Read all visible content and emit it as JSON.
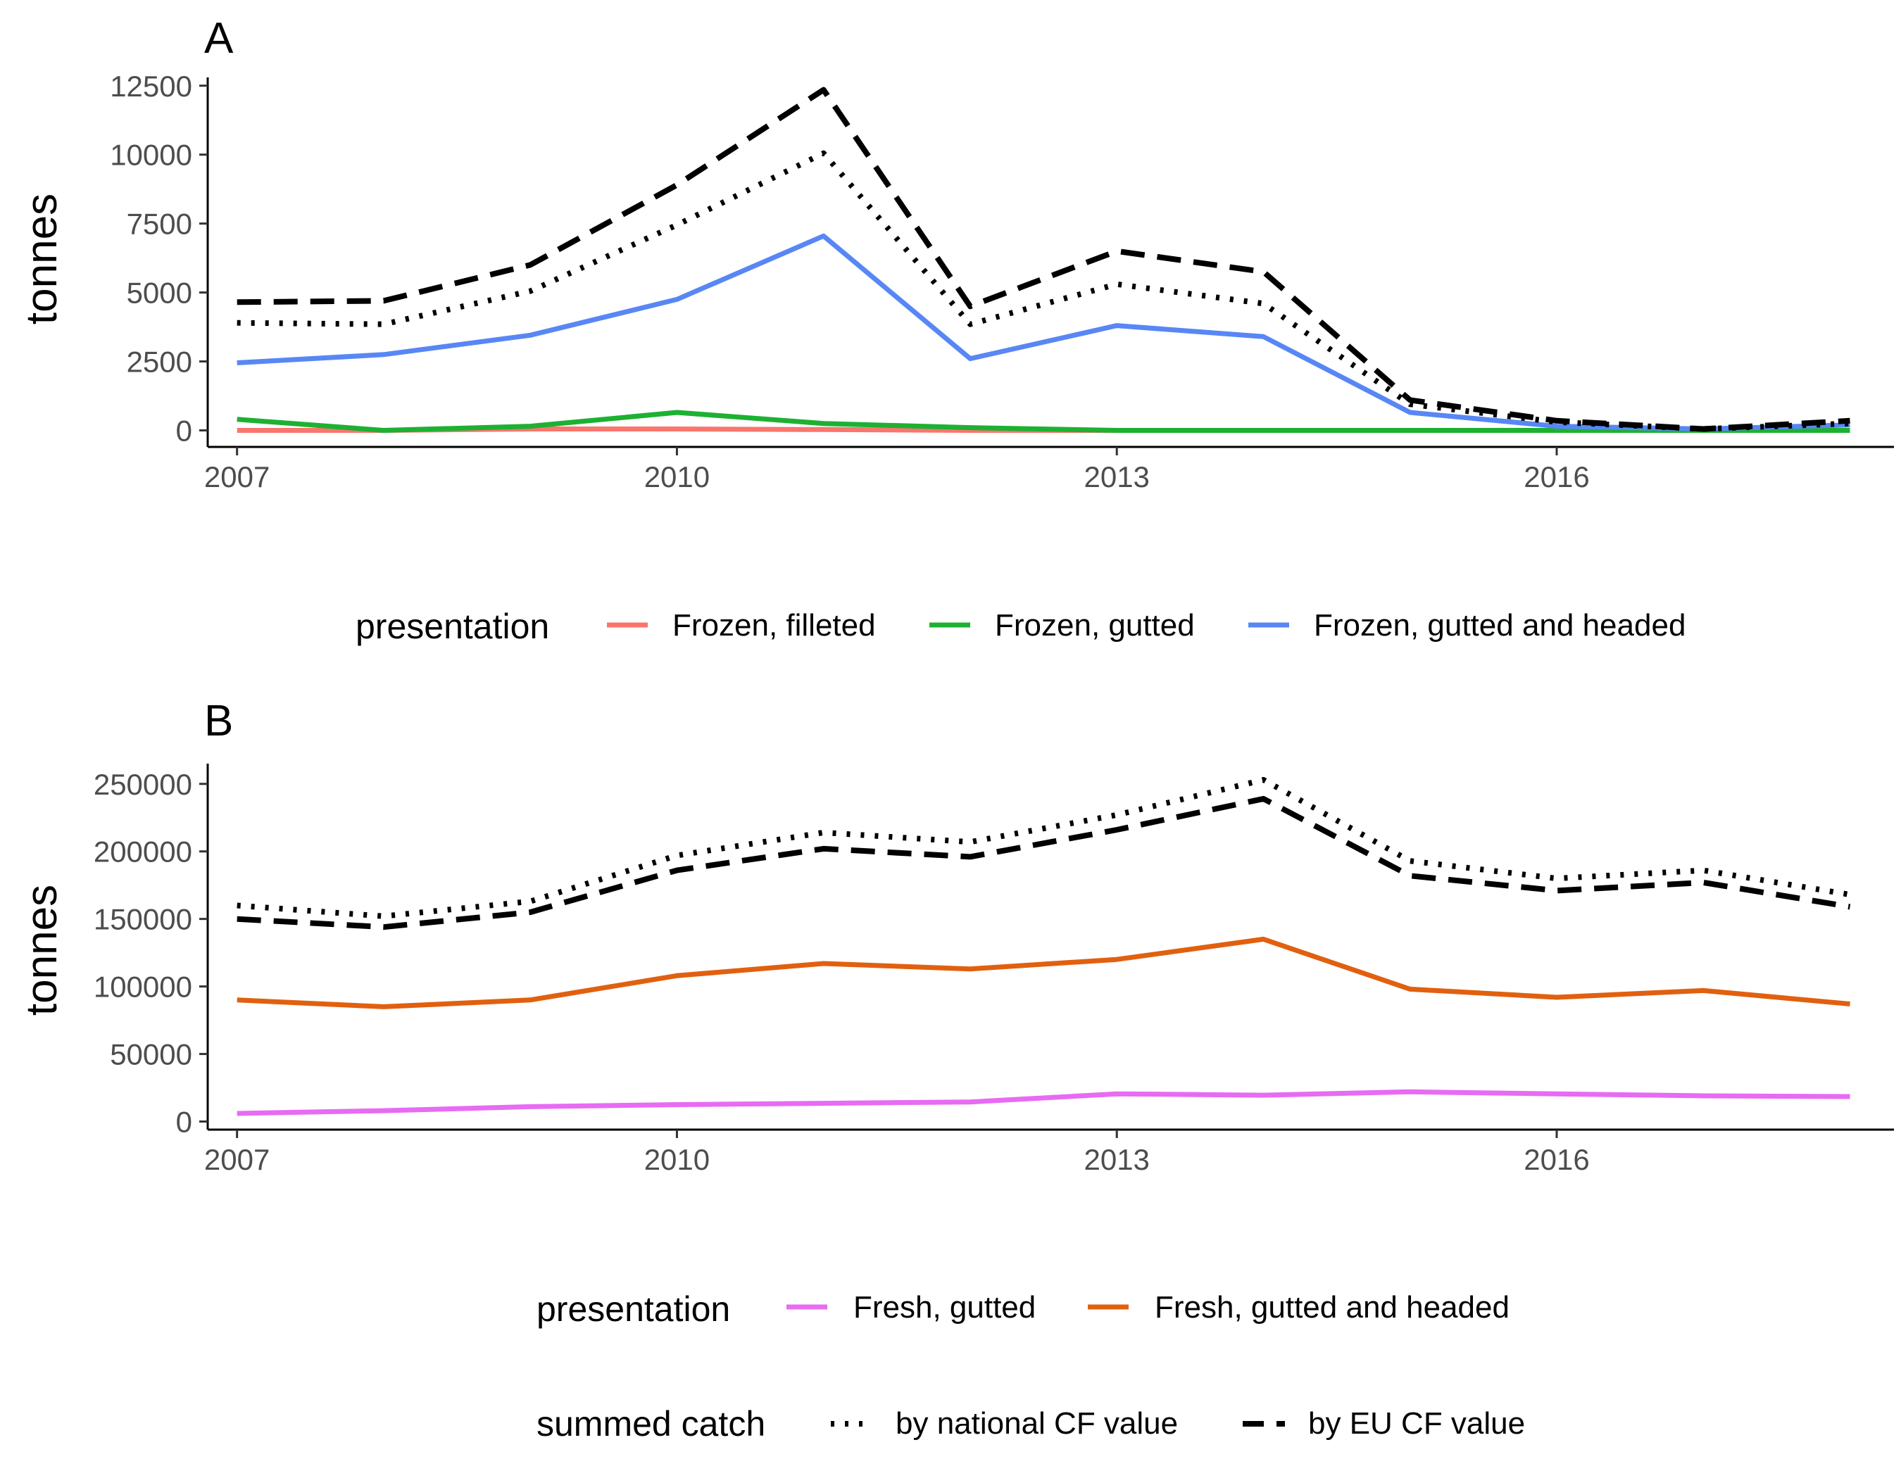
{
  "chart_data": [
    {
      "type": "line",
      "panel_label": "A",
      "ylabel": "tonnes",
      "xlabel": "",
      "xlim": [
        2006.8,
        2018.3
      ],
      "ylim": [
        -600,
        12800
      ],
      "x_ticks": [
        2007,
        2010,
        2013,
        2016
      ],
      "y_ticks": [
        0,
        2500,
        5000,
        7500,
        10000,
        12500
      ],
      "x": [
        2007,
        2008,
        2009,
        2010,
        2011,
        2012,
        2013,
        2014,
        2015,
        2016,
        2017,
        2018
      ],
      "series": [
        {
          "name": "Frozen, filleted",
          "color": "#F8766D",
          "dash": "solid",
          "values": [
            0,
            0,
            50,
            50,
            30,
            0,
            0,
            0,
            0,
            0,
            0,
            0
          ]
        },
        {
          "name": "Frozen, gutted",
          "color": "#1DB132",
          "dash": "solid",
          "values": [
            400,
            0,
            150,
            650,
            250,
            100,
            0,
            0,
            0,
            0,
            0,
            0
          ]
        },
        {
          "name": "Frozen, gutted and headed",
          "color": "#5887F5",
          "dash": "solid",
          "values": [
            2450,
            2750,
            3450,
            4750,
            7050,
            2600,
            3800,
            3400,
            650,
            150,
            50,
            200
          ]
        },
        {
          "name": "by national CF value",
          "color": "#000000",
          "dash": "dotted",
          "values": [
            3900,
            3850,
            5050,
            7450,
            10050,
            3850,
            5300,
            4600,
            950,
            300,
            50,
            250
          ]
        },
        {
          "name": "by EU CF value",
          "color": "#000000",
          "dash": "dashed",
          "values": [
            4650,
            4700,
            6000,
            8900,
            12350,
            4500,
            6500,
            5750,
            1100,
            350,
            50,
            350
          ]
        }
      ],
      "legend": {
        "title": "presentation",
        "position": "bottom",
        "entries": [
          "Frozen, filleted",
          "Frozen, gutted",
          "Frozen, gutted and headed"
        ]
      }
    },
    {
      "type": "line",
      "panel_label": "B",
      "ylabel": "tonnes",
      "xlabel": "",
      "xlim": [
        2006.8,
        2018.3
      ],
      "ylim": [
        -6000,
        265000
      ],
      "x_ticks": [
        2007,
        2010,
        2013,
        2016
      ],
      "y_ticks": [
        0,
        50000,
        100000,
        150000,
        200000,
        250000
      ],
      "x": [
        2007,
        2008,
        2009,
        2010,
        2011,
        2012,
        2013,
        2014,
        2015,
        2016,
        2017,
        2018
      ],
      "series": [
        {
          "name": "Fresh, gutted",
          "color": "#E76BF3",
          "dash": "solid",
          "values": [
            6000,
            8000,
            11000,
            12500,
            13500,
            14500,
            20500,
            19500,
            22000,
            20500,
            19000,
            18500
          ]
        },
        {
          "name": "Fresh, gutted and headed",
          "color": "#E1600F",
          "dash": "solid",
          "values": [
            90000,
            85000,
            90000,
            108000,
            117000,
            113000,
            120000,
            135000,
            98000,
            92000,
            97000,
            87000
          ]
        },
        {
          "name": "by national CF value",
          "color": "#000000",
          "dash": "dotted",
          "values": [
            160000,
            152000,
            163000,
            197000,
            214000,
            207000,
            227000,
            253000,
            193000,
            180000,
            186000,
            168000
          ]
        },
        {
          "name": "by EU CF value",
          "color": "#000000",
          "dash": "dashed",
          "values": [
            150000,
            144000,
            155000,
            186000,
            202000,
            196000,
            216000,
            239000,
            182000,
            171000,
            177000,
            159000
          ]
        }
      ],
      "legend": {
        "title": "presentation",
        "position": "bottom",
        "entries": [
          "Fresh, gutted",
          "Fresh, gutted and headed"
        ]
      }
    }
  ],
  "shared_legend": {
    "title": "summed catch",
    "entries": [
      {
        "label": "by national CF value",
        "dash": "dotted"
      },
      {
        "label": "by EU CF value",
        "dash": "dashed"
      }
    ]
  }
}
